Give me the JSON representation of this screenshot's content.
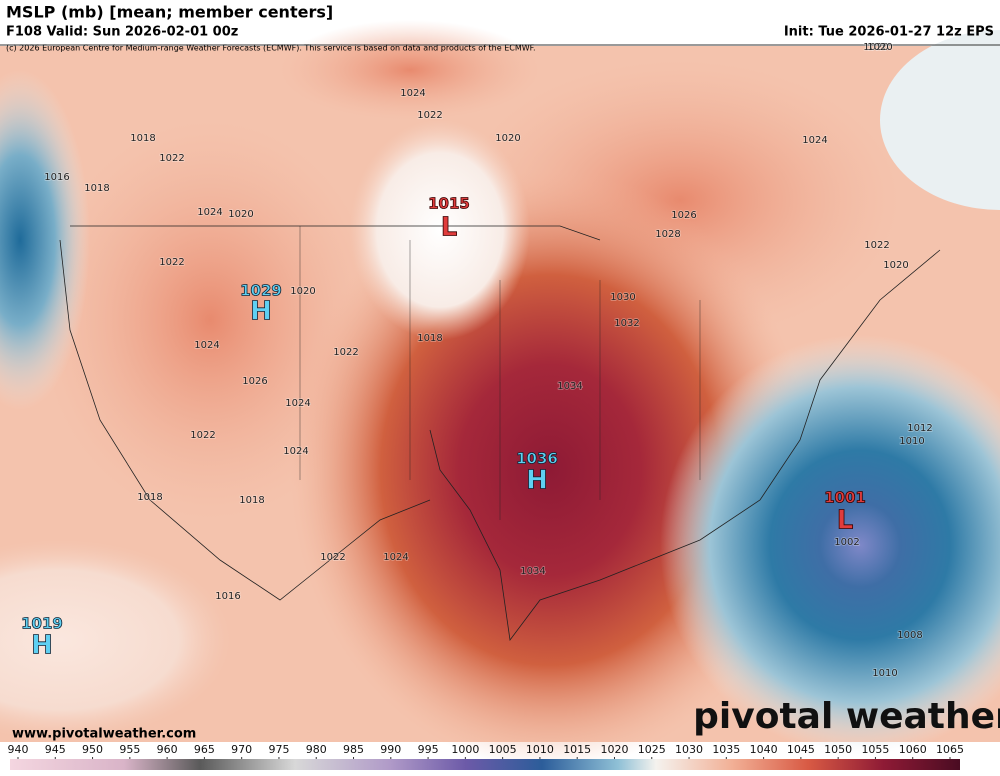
{
  "header": {
    "title": "MSLP (mb) [mean; member centers]",
    "valid": "F108 Valid: Sun 2026-02-01 00z",
    "init": "Init: Tue 2026-01-27 12z EPS",
    "credit": "(c) 2026 European Centre for Medium-range Weather Forecasts (ECMWF). This service is based on data and products of the ECMWF."
  },
  "centers": [
    {
      "type": "H",
      "value": 1029
    },
    {
      "type": "H",
      "value": 1036
    },
    {
      "type": "L",
      "value": 1015
    },
    {
      "type": "L",
      "value": 1001
    },
    {
      "type": "H",
      "value": 1019
    }
  ],
  "isobar_labels": [
    1024,
    1022,
    1020,
    1018,
    1022,
    1016,
    1018,
    1024,
    1020,
    1022,
    1020,
    1022,
    1024,
    1026,
    1024,
    1022,
    1024,
    1018,
    1018,
    1022,
    1024,
    1016,
    1018,
    1026,
    1028,
    1030,
    1032,
    1034,
    1034,
    1024,
    1022,
    1020,
    1020,
    1012,
    1010,
    1008,
    1010,
    1002,
    1020
  ],
  "colorbar": {
    "ticks": [
      940,
      945,
      950,
      955,
      960,
      965,
      970,
      975,
      980,
      985,
      990,
      995,
      1000,
      1005,
      1010,
      1015,
      1020,
      1025,
      1030,
      1035,
      1040,
      1045,
      1050,
      1055,
      1060,
      1065
    ]
  },
  "footer": {
    "url": "www.pivotalweather.com",
    "brand": "pivotal weather"
  }
}
